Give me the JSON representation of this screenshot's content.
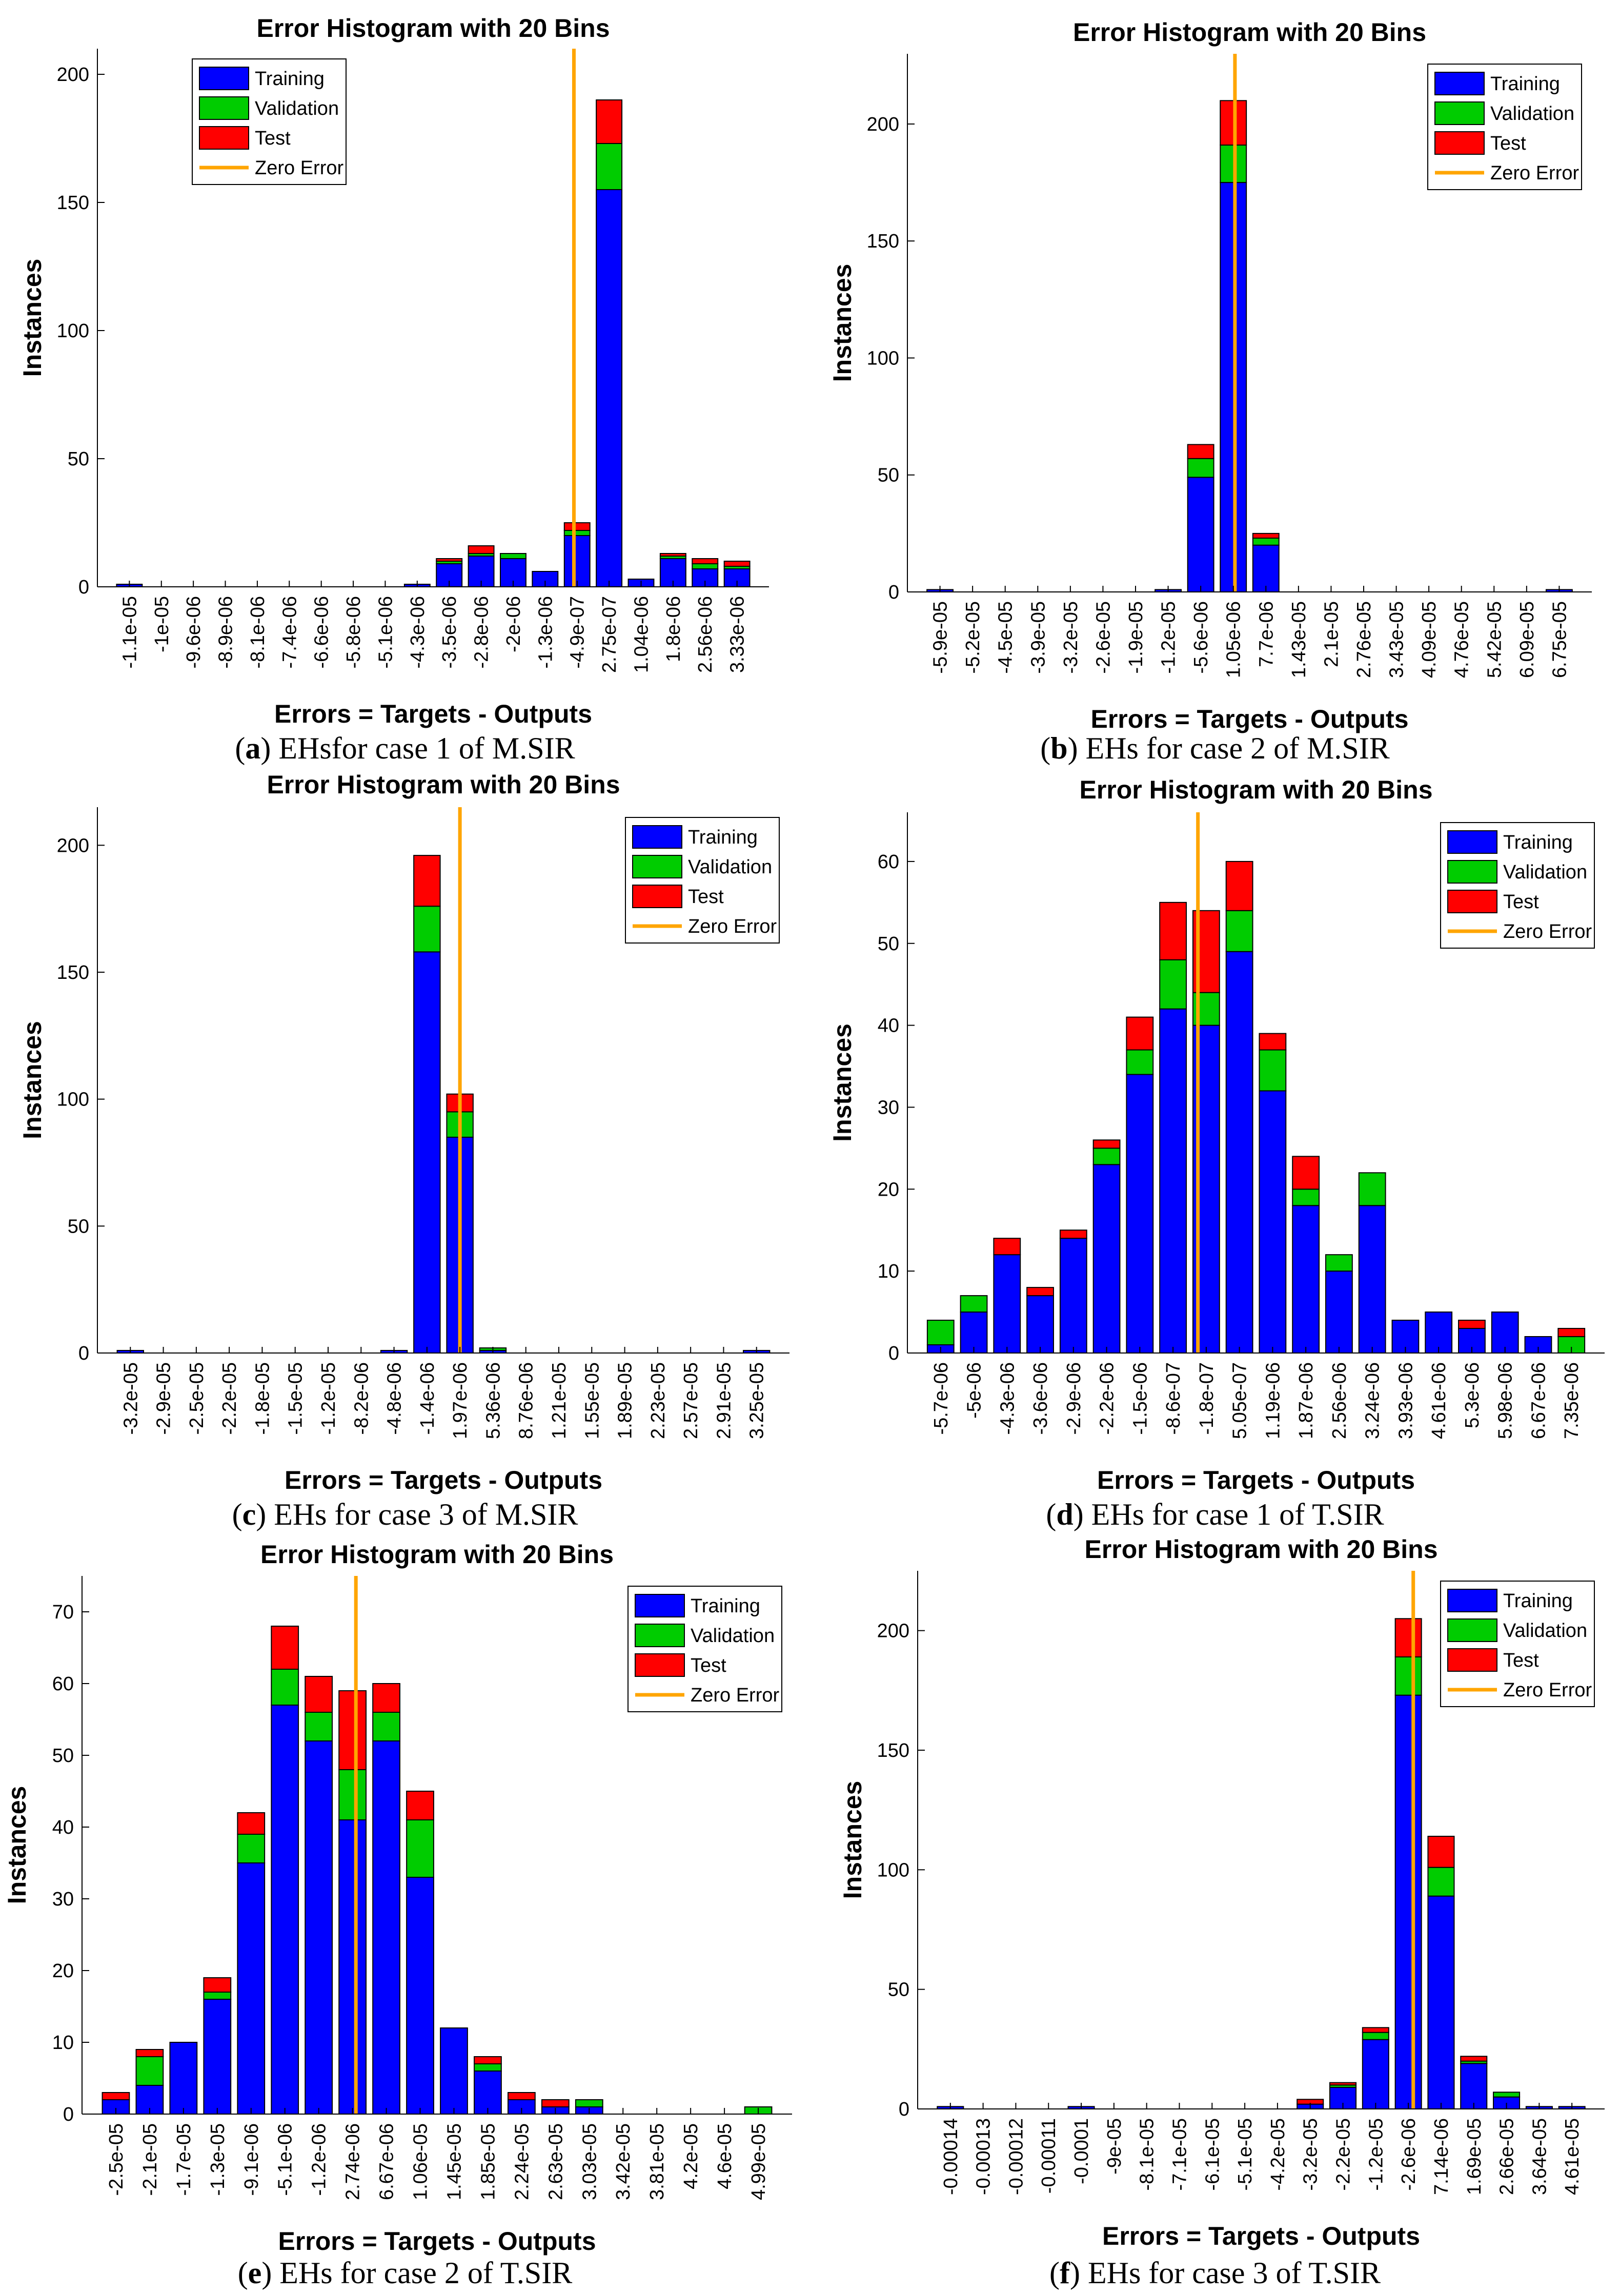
{
  "colors": {
    "training": "#0000ff",
    "validation": "#00cc00",
    "test": "#ff0000",
    "zero_error": "#ffa500",
    "axis": "#000000"
  },
  "chart_data": [
    {
      "type": "bar",
      "stacked": true,
      "title": "Error Histogram with 20 Bins",
      "xlabel": "Errors = Targets - Outputs",
      "ylabel": "Instances",
      "caption_letter": "a",
      "caption_text": "EHsfor case 1 of M.SIR",
      "ylim": [
        0,
        210
      ],
      "yticks": [
        0,
        50,
        100,
        150,
        200
      ],
      "legend": [
        "Training",
        "Validation",
        "Test",
        "Zero Error"
      ],
      "legend_position": "top-left",
      "zero_error_bin": 13.9,
      "categories": [
        "-1.1e-05",
        "-1e-05",
        "-9.6e-06",
        "-8.9e-06",
        "-8.1e-06",
        "-7.4e-06",
        "-6.6e-06",
        "-5.8e-06",
        "-5.1e-06",
        "-4.3e-06",
        "-3.5e-06",
        "-2.8e-06",
        "-2e-06",
        "-1.3e-06",
        "-4.9e-07",
        "2.75e-07",
        "1.04e-06",
        "1.8e-06",
        "2.56e-06",
        "3.33e-06"
      ],
      "series": [
        {
          "name": "Training",
          "values": [
            1,
            0,
            0,
            0,
            0,
            0,
            0,
            0,
            0,
            1,
            9,
            12,
            11,
            6,
            20,
            155,
            3,
            11,
            7,
            7
          ]
        },
        {
          "name": "Validation",
          "values": [
            0,
            0,
            0,
            0,
            0,
            0,
            0,
            0,
            0,
            0,
            1,
            1,
            2,
            0,
            2,
            18,
            0,
            1,
            2,
            1
          ]
        },
        {
          "name": "Test",
          "values": [
            0,
            0,
            0,
            0,
            0,
            0,
            0,
            0,
            0,
            0,
            1,
            3,
            0,
            0,
            3,
            17,
            0,
            1,
            2,
            2
          ]
        }
      ]
    },
    {
      "type": "bar",
      "stacked": true,
      "title": "Error Histogram with 20 Bins",
      "xlabel": "Errors = Targets - Outputs",
      "ylabel": "Instances",
      "caption_letter": "b",
      "caption_text": "EHs for case 2 of M.SIR",
      "ylim": [
        0,
        230
      ],
      "yticks": [
        0,
        50,
        100,
        150,
        200
      ],
      "legend": [
        "Training",
        "Validation",
        "Test",
        "Zero Error"
      ],
      "legend_position": "top-right",
      "zero_error_bin": 9.05,
      "categories": [
        "-5.9e-05",
        "-5.2e-05",
        "-4.5e-05",
        "-3.9e-05",
        "-3.2e-05",
        "-2.6e-05",
        "-1.9e-05",
        "-1.2e-05",
        "-5.6e-06",
        "1.05e-06",
        "7.7e-06",
        "1.43e-05",
        "2.1e-05",
        "2.76e-05",
        "3.43e-05",
        "4.09e-05",
        "4.76e-05",
        "5.42e-05",
        "6.09e-05",
        "6.75e-05"
      ],
      "series": [
        {
          "name": "Training",
          "values": [
            1,
            0,
            0,
            0,
            0,
            0,
            0,
            1,
            49,
            175,
            20,
            0,
            0,
            0,
            0,
            0,
            0,
            0,
            0,
            1
          ]
        },
        {
          "name": "Validation",
          "values": [
            0,
            0,
            0,
            0,
            0,
            0,
            0,
            0,
            8,
            16,
            3,
            0,
            0,
            0,
            0,
            0,
            0,
            0,
            0,
            0
          ]
        },
        {
          "name": "Test",
          "values": [
            0,
            0,
            0,
            0,
            0,
            0,
            0,
            0,
            6,
            19,
            2,
            0,
            0,
            0,
            0,
            0,
            0,
            0,
            0,
            0
          ]
        }
      ]
    },
    {
      "type": "bar",
      "stacked": true,
      "title": "Error Histogram with 20 Bins",
      "xlabel": "Errors = Targets - Outputs",
      "ylabel": "Instances",
      "caption_letter": "c",
      "caption_text": "EHs for case 3 of M.SIR",
      "ylim": [
        0,
        215
      ],
      "yticks": [
        0,
        50,
        100,
        150,
        200
      ],
      "legend": [
        "Training",
        "Validation",
        "Test",
        "Zero Error"
      ],
      "legend_position": "top-right",
      "zero_error_bin": 10.0,
      "categories": [
        "-3.2e-05",
        "-2.9e-05",
        "-2.5e-05",
        "-2.2e-05",
        "-1.8e-05",
        "-1.5e-05",
        "-1.2e-05",
        "-8.2e-06",
        "-4.8e-06",
        "-1.4e-06",
        "1.97e-06",
        "5.36e-06",
        "8.76e-06",
        "1.21e-05",
        "1.55e-05",
        "1.89e-05",
        "2.23e-05",
        "2.57e-05",
        "2.91e-05",
        "3.25e-05"
      ],
      "series": [
        {
          "name": "Training",
          "values": [
            1,
            0,
            0,
            0,
            0,
            0,
            0,
            0,
            1,
            158,
            85,
            1,
            0,
            0,
            0,
            0,
            0,
            0,
            0,
            1
          ]
        },
        {
          "name": "Validation",
          "values": [
            0,
            0,
            0,
            0,
            0,
            0,
            0,
            0,
            0,
            18,
            10,
            1,
            0,
            0,
            0,
            0,
            0,
            0,
            0,
            0
          ]
        },
        {
          "name": "Test",
          "values": [
            0,
            0,
            0,
            0,
            0,
            0,
            0,
            0,
            0,
            20,
            7,
            0,
            0,
            0,
            0,
            0,
            0,
            0,
            0,
            0
          ]
        }
      ]
    },
    {
      "type": "bar",
      "stacked": true,
      "title": "Error Histogram with 20 Bins",
      "xlabel": "Errors = Targets - Outputs",
      "ylabel": "Instances",
      "caption_letter": "d",
      "caption_text": "EHs for case 1 of T.SIR",
      "ylim": [
        0,
        66
      ],
      "yticks": [
        0,
        10,
        20,
        30,
        40,
        50,
        60
      ],
      "legend": [
        "Training",
        "Validation",
        "Test",
        "Zero Error"
      ],
      "legend_position": "top-right",
      "zero_error_bin": 7.75,
      "categories": [
        "-5.7e-06",
        "-5e-06",
        "-4.3e-06",
        "-3.6e-06",
        "-2.9e-06",
        "-2.2e-06",
        "-1.5e-06",
        "-8.6e-07",
        "-1.8e-07",
        "5.05e-07",
        "1.19e-06",
        "1.87e-06",
        "2.56e-06",
        "3.24e-06",
        "3.93e-06",
        "4.61e-06",
        "5.3e-06",
        "5.98e-06",
        "6.67e-06",
        "7.35e-06"
      ],
      "series": [
        {
          "name": "Training",
          "values": [
            1,
            5,
            12,
            7,
            14,
            23,
            34,
            42,
            40,
            49,
            32,
            18,
            10,
            18,
            4,
            5,
            3,
            5,
            2,
            0
          ]
        },
        {
          "name": "Validation",
          "values": [
            3,
            2,
            0,
            0,
            0,
            2,
            3,
            6,
            4,
            5,
            5,
            2,
            2,
            4,
            0,
            0,
            0,
            0,
            0,
            2
          ]
        },
        {
          "name": "Test",
          "values": [
            0,
            0,
            2,
            1,
            1,
            1,
            4,
            7,
            10,
            6,
            2,
            4,
            0,
            0,
            0,
            0,
            1,
            0,
            0,
            1
          ]
        }
      ]
    },
    {
      "type": "bar",
      "stacked": true,
      "title": "Error Histogram with 20 Bins",
      "xlabel": "Errors = Targets - Outputs",
      "ylabel": "Instances",
      "caption_letter": "e",
      "caption_text": "EHs for case 2 of T.SIR",
      "ylim": [
        0,
        75
      ],
      "yticks": [
        0,
        10,
        20,
        30,
        40,
        50,
        60,
        70
      ],
      "legend": [
        "Training",
        "Validation",
        "Test",
        "Zero Error"
      ],
      "legend_position": "top-right",
      "zero_error_bin": 7.1,
      "categories": [
        "-2.5e-05",
        "-2.1e-05",
        "-1.7e-05",
        "-1.3e-05",
        "-9.1e-06",
        "-5.1e-06",
        "-1.2e-06",
        "2.74e-06",
        "6.67e-06",
        "1.06e-05",
        "1.45e-05",
        "1.85e-05",
        "2.24e-05",
        "2.63e-05",
        "3.03e-05",
        "3.42e-05",
        "3.81e-05",
        "4.2e-05",
        "4.6e-05",
        "4.99e-05"
      ],
      "series": [
        {
          "name": "Training",
          "values": [
            2,
            4,
            10,
            16,
            35,
            57,
            52,
            41,
            52,
            33,
            12,
            6,
            2,
            1,
            1,
            0,
            0,
            0,
            0,
            0
          ]
        },
        {
          "name": "Validation",
          "values": [
            0,
            4,
            0,
            1,
            4,
            5,
            4,
            7,
            4,
            8,
            0,
            1,
            0,
            0,
            1,
            0,
            0,
            0,
            0,
            1
          ]
        },
        {
          "name": "Test",
          "values": [
            1,
            1,
            0,
            2,
            3,
            6,
            5,
            11,
            4,
            4,
            0,
            1,
            1,
            1,
            0,
            0,
            0,
            0,
            0,
            0
          ]
        }
      ]
    },
    {
      "type": "bar",
      "stacked": true,
      "title": "Error Histogram with 20 Bins",
      "xlabel": "Errors = Targets - Outputs",
      "ylabel": "Instances",
      "caption_letter": "f",
      "caption_text": "EHs for case 3 of T.SIR",
      "ylim": [
        0,
        225
      ],
      "yticks": [
        0,
        50,
        100,
        150,
        200
      ],
      "legend": [
        "Training",
        "Validation",
        "Test",
        "Zero Error"
      ],
      "legend_position": "top-right",
      "zero_error_bin": 14.15,
      "categories": [
        "-0.00014",
        "-0.00013",
        "-0.00012",
        "-0.00011",
        "-0.0001",
        "-9e-05",
        "-8.1e-05",
        "-7.1e-05",
        "-6.1e-05",
        "-5.1e-05",
        "-4.2e-05",
        "-3.2e-05",
        "-2.2e-05",
        "-1.2e-05",
        "-2.6e-06",
        "7.14e-06",
        "1.69e-05",
        "2.66e-05",
        "3.64e-05",
        "4.61e-05"
      ],
      "series": [
        {
          "name": "Training",
          "values": [
            1,
            0,
            0,
            0,
            1,
            0,
            0,
            0,
            0,
            0,
            0,
            2,
            9,
            29,
            173,
            89,
            19,
            5,
            1,
            1
          ]
        },
        {
          "name": "Validation",
          "values": [
            0,
            0,
            0,
            0,
            0,
            0,
            0,
            0,
            0,
            0,
            0,
            0,
            1,
            3,
            16,
            12,
            1,
            2,
            0,
            0
          ]
        },
        {
          "name": "Test",
          "values": [
            0,
            0,
            0,
            0,
            0,
            0,
            0,
            0,
            0,
            0,
            0,
            2,
            1,
            2,
            16,
            13,
            2,
            0,
            0,
            0
          ]
        }
      ]
    }
  ]
}
